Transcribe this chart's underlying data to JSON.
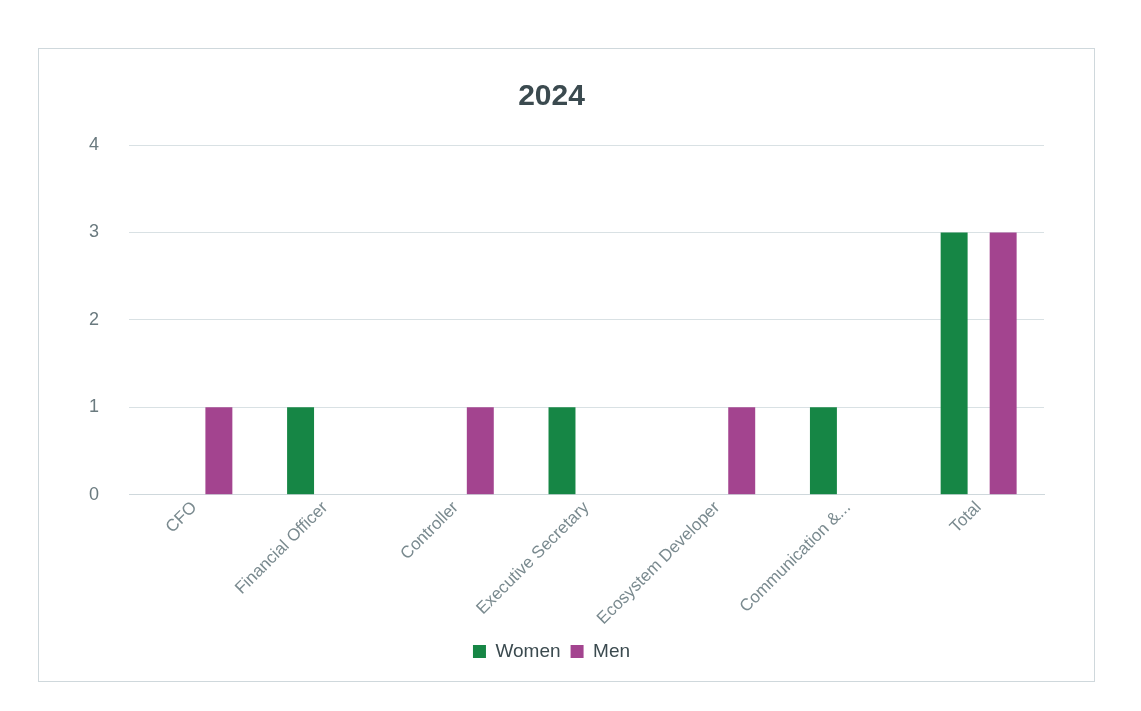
{
  "chart_data": {
    "type": "bar",
    "title": "2024",
    "categories": [
      "CFO",
      "Financial Officer",
      "Controller",
      "Executive Secretary",
      "Ecosystem Developer",
      "Communication &...",
      "Total"
    ],
    "series": [
      {
        "name": "Women",
        "color": "#168645",
        "values": [
          null,
          1,
          null,
          1,
          null,
          1,
          3
        ]
      },
      {
        "name": "Men",
        "color": "#a3448f",
        "values": [
          1,
          null,
          1,
          null,
          1,
          null,
          3
        ]
      }
    ],
    "ylim": [
      0,
      4
    ],
    "yticks": [
      0,
      1,
      2,
      3,
      4
    ],
    "grid": "y",
    "legend": "bottom"
  }
}
